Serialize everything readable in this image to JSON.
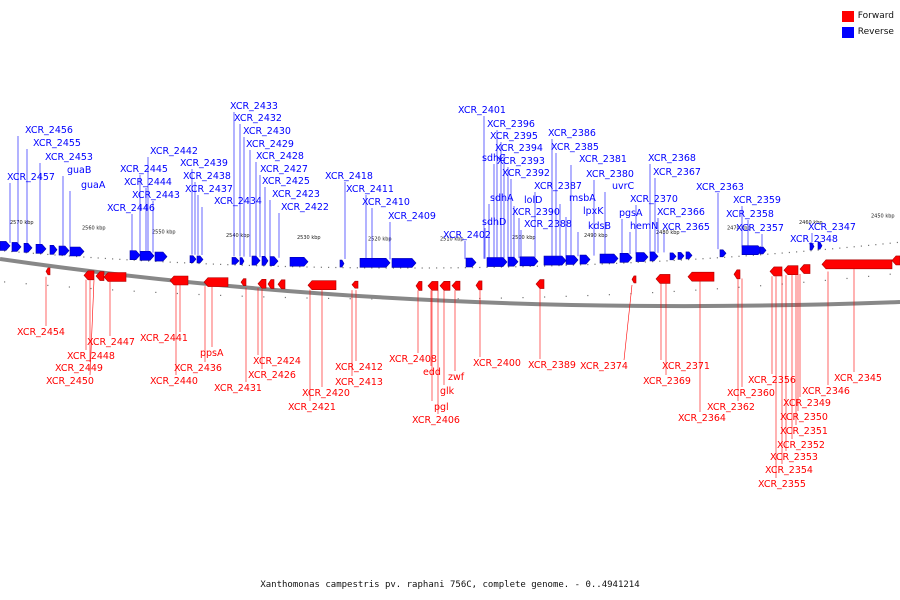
{
  "legend": {
    "forward_label": "Forward",
    "reverse_label": "Reverse",
    "forward_color": "#ff0000",
    "reverse_color": "#0000ff"
  },
  "caption": "Xanthomonas campestris pv. raphani 756C, complete genome. - 0..4941214",
  "scale_labels": [
    "2570 kbp",
    "2560 kbp",
    "2550 kbp",
    "2540 kbp",
    "2530 kbp",
    "2520 kbp",
    "2510 kbp",
    "2500 kbp",
    "2490 kbp",
    "2480 kbp",
    "2470 kbp",
    "2460 kbp",
    "2450 kbp"
  ],
  "reverse_genes": [
    "XCR_2457",
    "XCR_2456",
    "XCR_2455",
    "XCR_2453",
    "guaB",
    "guaA",
    "XCR_2446",
    "XCR_2445",
    "XCR_2444",
    "XCR_2443",
    "XCR_2442",
    "XCR_2439",
    "XCR_2438",
    "XCR_2437",
    "XCR_2434",
    "XCR_2433",
    "XCR_2432",
    "XCR_2430",
    "XCR_2429",
    "XCR_2428",
    "XCR_2427",
    "XCR_2425",
    "XCR_2423",
    "XCR_2422",
    "XCR_2418",
    "XCR_2411",
    "XCR_2410",
    "XCR_2409",
    "XCR_2402",
    "XCR_2401",
    "sdhD",
    "sdhA",
    "sdhC",
    "XCR_2396",
    "XCR_2395",
    "XCR_2394",
    "XCR_2393",
    "XCR_2392",
    "lolD",
    "XCR_2390",
    "XCR_2388",
    "XCR_2387",
    "XCR_2386",
    "XCR_2385",
    "msbA",
    "lpxK",
    "XCR_2381",
    "kdsB",
    "XCR_2380",
    "uvrC",
    "pgsA",
    "hemN",
    "XCR_2370",
    "XCR_2368",
    "XCR_2367",
    "XCR_2366",
    "XCR_2365",
    "XCR_2363",
    "XCR_2359",
    "XCR_2358",
    "XCR_2357",
    "XCR_2347",
    "XCR_2348"
  ],
  "forward_genes": [
    "XCR_2454",
    "XCR_2448",
    "XCR_2449",
    "XCR_2450",
    "XCR_2447",
    "XCR_2441",
    "XCR_2440",
    "XCR_2436",
    "ppsA",
    "XCR_2431",
    "XCR_2424",
    "XCR_2426",
    "XCR_2421",
    "XCR_2420",
    "XCR_2413",
    "XCR_2412",
    "XCR_2408",
    "edd",
    "glk",
    "zwf",
    "pgl",
    "XCR_2406",
    "XCR_2400",
    "XCR_2389",
    "XCR_2374",
    "XCR_2371",
    "XCR_2369",
    "XCR_2364",
    "XCR_2362",
    "XCR_2360",
    "XCR_2356",
    "XCR_2346",
    "XCR_2349",
    "XCR_2350",
    "XCR_2351",
    "XCR_2352",
    "XCR_2353",
    "XCR_2354",
    "XCR_2355",
    "XCR_2345"
  ]
}
